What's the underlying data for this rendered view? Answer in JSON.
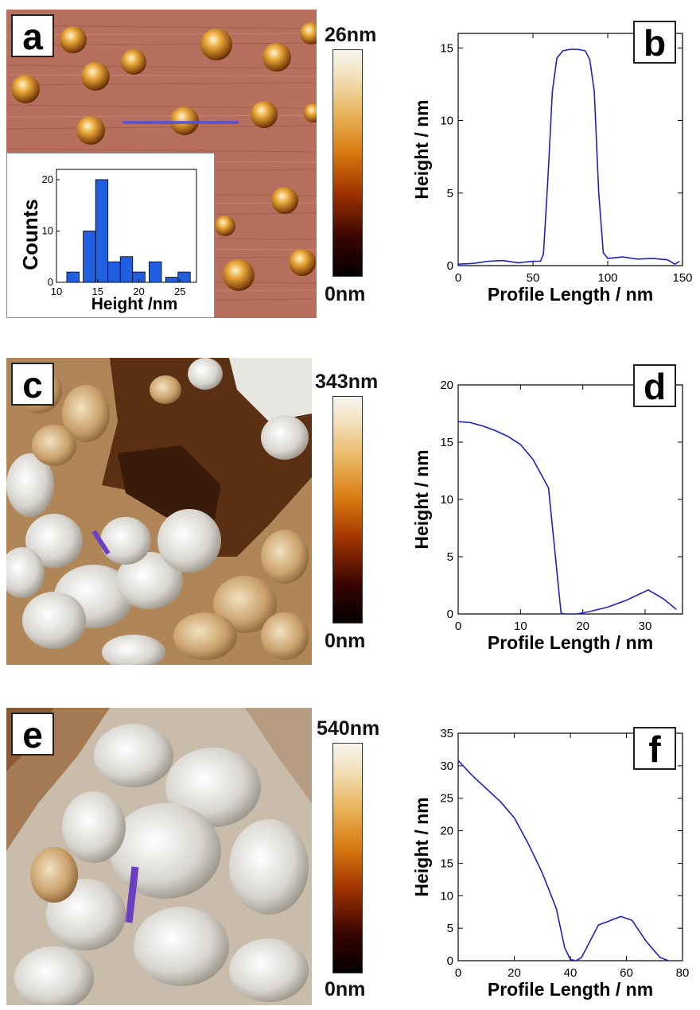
{
  "panels": {
    "a": {
      "label": "a",
      "colorbar_max": "26nm",
      "colorbar_min": "0nm",
      "inset": {
        "ylabel": "Counts",
        "xlabel": "Height /nm"
      }
    },
    "b": {
      "label": "b"
    },
    "c": {
      "label": "c",
      "colorbar_max": "343nm",
      "colorbar_min": "0nm"
    },
    "d": {
      "label": "d"
    },
    "e": {
      "label": "e",
      "colorbar_max": "540nm",
      "colorbar_min": "0nm"
    },
    "f": {
      "label": "f"
    }
  },
  "chart_data": [
    {
      "id": "a-inset",
      "type": "bar",
      "xlabel": "Height /nm",
      "ylabel": "Counts",
      "x_bin_centers": [
        12,
        14,
        15.5,
        17,
        18.5,
        20,
        22,
        24,
        25.5
      ],
      "values": [
        2,
        10,
        20,
        4,
        5,
        2,
        4,
        1,
        2
      ],
      "xlim": [
        10,
        27
      ],
      "ylim": [
        0,
        22
      ],
      "xticks": [
        10,
        15,
        20,
        25
      ],
      "yticks": [
        0,
        10,
        20
      ],
      "color": "#1f5fe0"
    },
    {
      "id": "b",
      "type": "line",
      "xlabel": "Profile Length / nm",
      "ylabel": "Height / nm",
      "xlim": [
        0,
        150
      ],
      "ylim": [
        0,
        16
      ],
      "xticks": [
        0,
        50,
        100,
        150
      ],
      "yticks": [
        0,
        5,
        10,
        15
      ],
      "color": "#2020c0",
      "x": [
        0,
        10,
        20,
        30,
        40,
        50,
        55,
        57,
        60,
        63,
        66,
        70,
        75,
        80,
        85,
        88,
        91,
        94,
        97,
        100,
        110,
        120,
        130,
        140,
        145,
        148
      ],
      "y": [
        0.1,
        0.15,
        0.3,
        0.35,
        0.2,
        0.3,
        0.3,
        0.8,
        6,
        12,
        14.3,
        14.8,
        14.9,
        14.9,
        14.8,
        14.2,
        12,
        5,
        0.9,
        0.5,
        0.6,
        0.45,
        0.5,
        0.4,
        0.1,
        0.3
      ]
    },
    {
      "id": "d",
      "type": "line",
      "xlabel": "Profile Length / nm",
      "ylabel": "Height / nm",
      "xlim": [
        0,
        36
      ],
      "ylim": [
        0,
        20
      ],
      "xticks": [
        0,
        10,
        20,
        30
      ],
      "yticks": [
        0,
        5,
        10,
        15,
        20
      ],
      "color": "#2020c0",
      "x": [
        0,
        2,
        4,
        6,
        8,
        10,
        12,
        14,
        14.5,
        16.5,
        17,
        19,
        21,
        24,
        27,
        30.5,
        33,
        35
      ],
      "y": [
        16.8,
        16.7,
        16.4,
        16,
        15.5,
        14.8,
        13.5,
        11.5,
        11,
        0.1,
        0,
        0,
        0.2,
        0.6,
        1.2,
        2.1,
        1.3,
        0.4
      ]
    },
    {
      "id": "f",
      "type": "line",
      "xlabel": "Profile Length / nm",
      "ylabel": "Height / nm",
      "xlim": [
        0,
        80
      ],
      "ylim": [
        0,
        35
      ],
      "xticks": [
        0,
        20,
        40,
        60,
        80
      ],
      "yticks": [
        0,
        5,
        10,
        15,
        20,
        25,
        30,
        35
      ],
      "color": "#2020c0",
      "x": [
        0,
        5,
        10,
        15,
        20,
        25,
        30,
        35,
        38,
        40,
        42,
        44,
        50,
        55,
        58,
        62,
        67,
        72,
        75
      ],
      "y": [
        30.8,
        28.5,
        26.5,
        24.5,
        22,
        18,
        13.5,
        8,
        2,
        0.2,
        0,
        0.5,
        5.5,
        6.3,
        6.8,
        6.2,
        3,
        0.5,
        0
      ]
    }
  ]
}
